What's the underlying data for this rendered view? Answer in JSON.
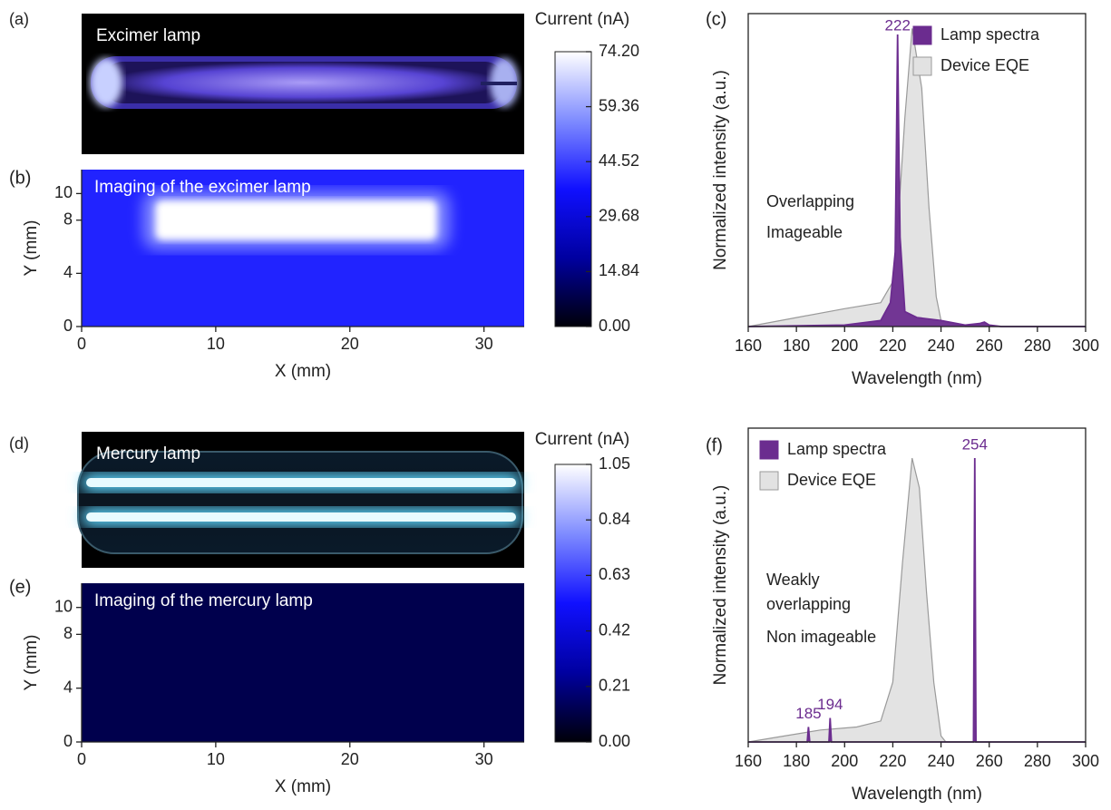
{
  "chart_data": [
    {
      "type": "image",
      "panel": "(a)",
      "label": "Excimer lamp"
    },
    {
      "type": "heatmap",
      "panel": "(b)",
      "label": "Imaging of the excimer lamp",
      "xlabel": "X (mm)",
      "ylabel": "Y (mm)",
      "xlim": [
        0,
        33
      ],
      "ylim": [
        0,
        11.8
      ],
      "xticks": [
        0,
        10,
        20,
        30
      ],
      "yticks": [
        0,
        4,
        8,
        10
      ],
      "background": 40,
      "spot": {
        "x": [
          5.5,
          26.5
        ],
        "y": [
          6.5,
          9.5
        ],
        "value": 74.2
      },
      "colorbar": {
        "label": "Current (nA)",
        "lim": [
          0,
          74.2
        ],
        "ticks": [
          {
            "value": 74.2,
            "label": "74.20"
          },
          59.36,
          44.52,
          29.68,
          14.84,
          {
            "value": 0,
            "label": "0.00"
          }
        ]
      }
    },
    {
      "type": "line",
      "panel": "(c)",
      "xlabel": "Wavelength (nm)",
      "ylabel": "Normalized intensity (a.u.)",
      "xlim": [
        160,
        300
      ],
      "ylim": [
        0,
        1.05
      ],
      "xticks": [
        160,
        180,
        200,
        220,
        240,
        260,
        280,
        300
      ],
      "legend": "upper right",
      "peaks": [
        222
      ],
      "annotations": [
        "Overlapping",
        "Imageable"
      ],
      "series": [
        {
          "name": "Lamp spectra",
          "color": "#6b2c8f",
          "x": [
            160,
            200,
            215,
            219,
            221,
            221.5,
            222,
            222.5,
            223,
            225,
            230,
            240,
            250,
            256,
            258,
            260,
            265,
            300
          ],
          "values": [
            0,
            0.005,
            0.02,
            0.08,
            0.25,
            0.6,
            0.98,
            0.6,
            0.3,
            0.05,
            0.03,
            0.02,
            0.005,
            0.01,
            0.015,
            0.005,
            0,
            0
          ]
        },
        {
          "name": "Device EQE",
          "color": "#9a9a9a",
          "x": [
            160,
            180,
            200,
            215,
            220,
            223,
            225,
            228,
            232,
            235,
            238,
            240,
            250,
            300
          ],
          "values": [
            0,
            0.03,
            0.06,
            0.08,
            0.15,
            0.45,
            0.7,
            1.0,
            0.8,
            0.4,
            0.1,
            0.02,
            0,
            0
          ]
        }
      ]
    },
    {
      "type": "image",
      "panel": "(d)",
      "label": "Mercury lamp"
    },
    {
      "type": "heatmap",
      "panel": "(e)",
      "label": "Imaging of the mercury lamp",
      "xlabel": "X (mm)",
      "ylabel": "Y (mm)",
      "xlim": [
        0,
        33
      ],
      "ylim": [
        0,
        11.8
      ],
      "xticks": [
        0,
        10,
        20,
        30
      ],
      "yticks": [
        0,
        4,
        8,
        10
      ],
      "background": 0.12,
      "colorbar": {
        "label": "Current (nA)",
        "lim": [
          0,
          1.05
        ],
        "ticks": [
          1.05,
          0.84,
          0.63,
          0.42,
          0.21,
          {
            "value": 0,
            "label": "0.00"
          }
        ]
      }
    },
    {
      "type": "line",
      "panel": "(f)",
      "xlabel": "Wavelength (nm)",
      "ylabel": "Normalized intensity (a.u.)",
      "xlim": [
        160,
        300
      ],
      "ylim": [
        0,
        1.05
      ],
      "xticks": [
        160,
        180,
        200,
        220,
        240,
        260,
        280,
        300
      ],
      "legend": "upper left",
      "peaks": [
        185,
        194,
        254
      ],
      "annotations": [
        "Weakly",
        "overlapping",
        "Non imageable"
      ],
      "series": [
        {
          "name": "Lamp spectra",
          "color": "#6b2c8f",
          "x": [
            160,
            184.5,
            185,
            185.5,
            193.5,
            194,
            194.5,
            253.5,
            254,
            254.5,
            300
          ],
          "values": [
            0,
            0,
            0.05,
            0,
            0,
            0.08,
            0,
            0,
            0.95,
            0,
            0
          ]
        },
        {
          "name": "Device EQE",
          "color": "#9a9a9a",
          "x": [
            160,
            175,
            190,
            205,
            215,
            220,
            224,
            228,
            231,
            234,
            237,
            240,
            242,
            300
          ],
          "values": [
            0,
            0.02,
            0.04,
            0.05,
            0.07,
            0.2,
            0.6,
            0.95,
            0.85,
            0.5,
            0.2,
            0.02,
            0,
            0
          ]
        }
      ]
    }
  ]
}
